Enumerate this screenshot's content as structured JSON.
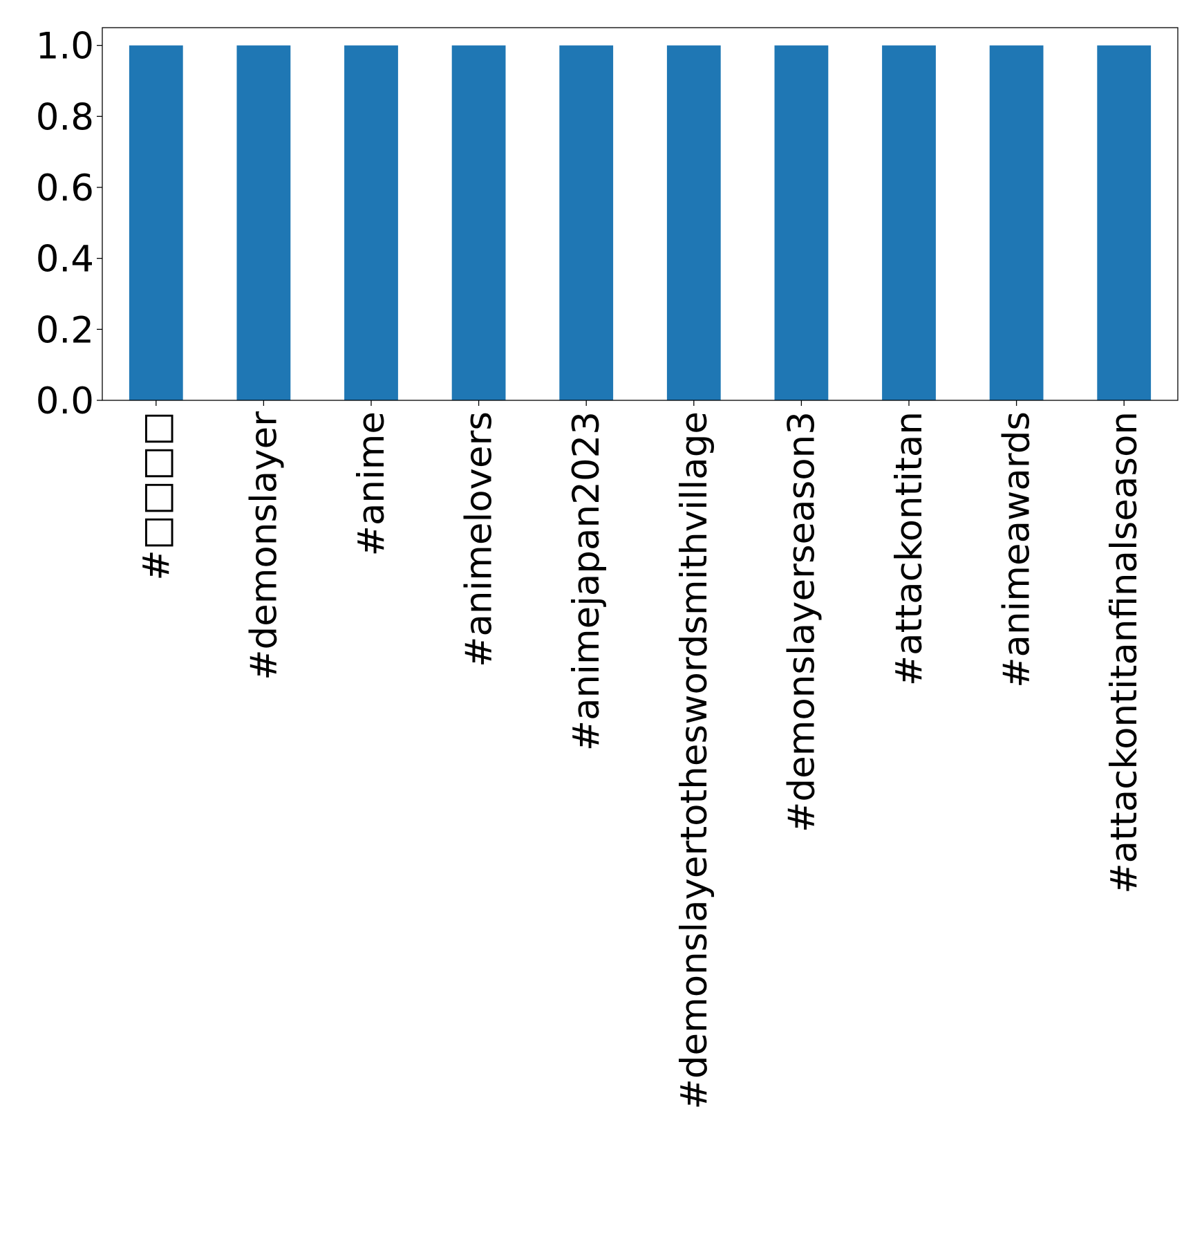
{
  "chart_data": {
    "type": "bar",
    "categories": [
      "#□□□□",
      "#demonslayer",
      "#anime",
      "#animelovers",
      "#animejapan2023",
      "#demonslayertotheswordsmithvillage",
      "#demonslayerseason3",
      "#attackontitan",
      "#animeawards",
      "#attackontitanfinalseason"
    ],
    "values": [
      1,
      1,
      1,
      1,
      1,
      1,
      1,
      1,
      1,
      1
    ],
    "title": "",
    "xlabel": "",
    "ylabel": "",
    "ylim": [
      0,
      1.05
    ],
    "yticks": [
      "0.0",
      "0.2",
      "0.4",
      "0.6",
      "0.8",
      "1.0"
    ],
    "grid": false,
    "bar_color": "#1f77b4"
  }
}
